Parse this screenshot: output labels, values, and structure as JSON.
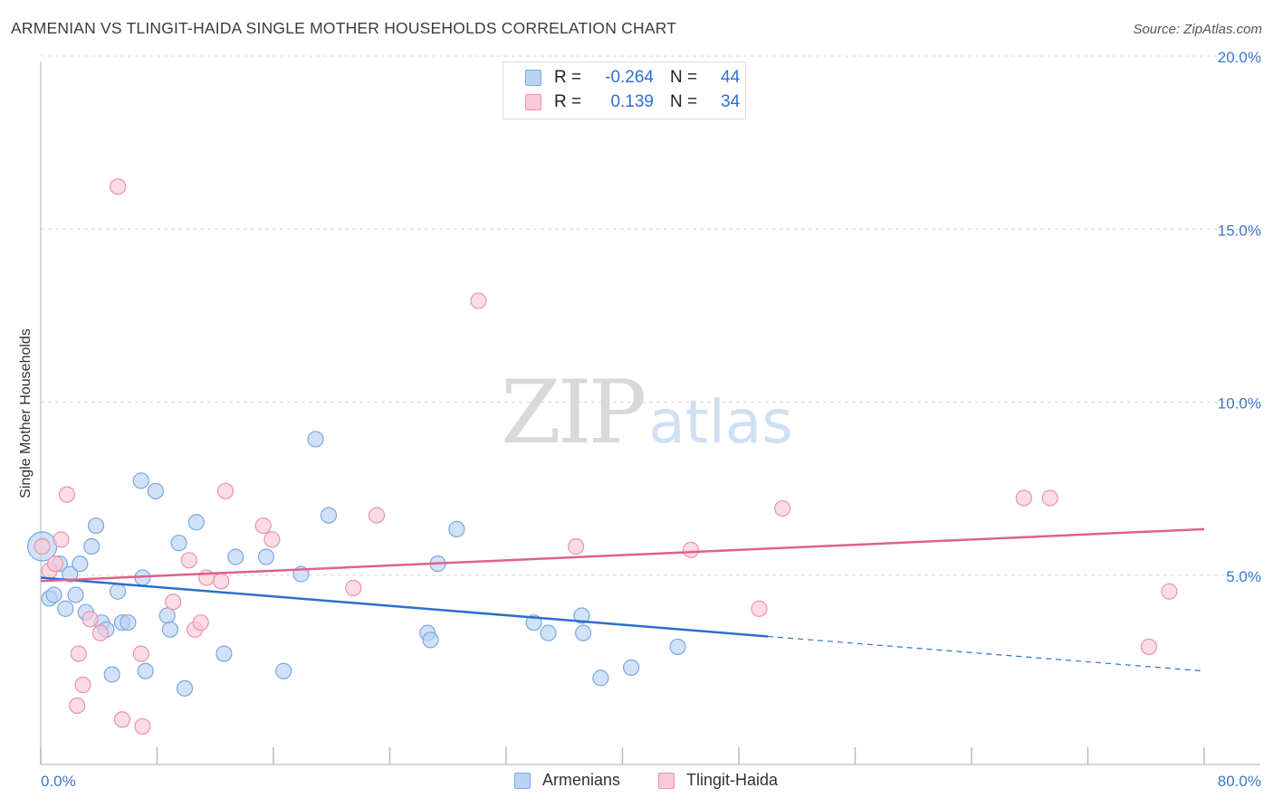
{
  "title": "ARMENIAN VS TLINGIT-HAIDA SINGLE MOTHER HOUSEHOLDS CORRELATION CHART",
  "source": "Source: ZipAtlas.com",
  "watermark": {
    "zip": "ZIP",
    "atlas": "atlas"
  },
  "legend": {
    "rows": [
      {
        "r_label": "R =",
        "r_value": "-0.264",
        "n_label": "N =",
        "n_value": "44"
      },
      {
        "r_label": "R =",
        "r_value": "0.139",
        "n_label": "N =",
        "n_value": "34"
      }
    ]
  },
  "bottom_legend": {
    "armenians": "Armenians",
    "tlingit": "Tlingit-Haida"
  },
  "colors": {
    "armenians_fill": "#b9d3f5",
    "armenians_stroke": "#7aa7e0",
    "armenians_line": "#2b6fcf",
    "tlingit_fill": "#f9c9d7",
    "tlingit_stroke": "#ea93ad",
    "tlingit_line": "#e0608c",
    "tick_label": "#3d78c9",
    "grid": "#d8d8d8"
  },
  "chart_data": {
    "type": "scatter",
    "title": "ARMENIAN VS TLINGIT-HAIDA SINGLE MOTHER HOUSEHOLDS CORRELATION CHART",
    "xlabel": "",
    "ylabel": "Single Mother Households",
    "xlim": [
      0,
      80
    ],
    "ylim": [
      0,
      20
    ],
    "x_tick_labels": [
      "0.0%",
      "80.0%"
    ],
    "y_ticks": [
      5,
      10,
      15,
      20
    ],
    "y_tick_labels": [
      "5.0%",
      "10.0%",
      "15.0%",
      "20.0%"
    ],
    "grid": "horizontal dashed",
    "legend_position": "top-center",
    "series": [
      {
        "name": "Armenians",
        "points": [
          [
            0.1,
            6.3
          ],
          [
            0.6,
            4.8
          ],
          [
            0.9,
            4.9
          ],
          [
            1.3,
            5.8
          ],
          [
            1.7,
            4.5
          ],
          [
            2.0,
            5.5
          ],
          [
            2.4,
            4.9
          ],
          [
            2.7,
            5.8
          ],
          [
            3.1,
            4.4
          ],
          [
            3.5,
            6.3
          ],
          [
            3.8,
            6.9
          ],
          [
            4.2,
            4.1
          ],
          [
            4.5,
            3.9
          ],
          [
            4.9,
            2.6
          ],
          [
            5.3,
            5.0
          ],
          [
            5.6,
            4.1
          ],
          [
            6.0,
            4.1
          ],
          [
            6.9,
            8.2
          ],
          [
            7.0,
            5.4
          ],
          [
            7.2,
            2.7
          ],
          [
            7.9,
            7.9
          ],
          [
            8.7,
            4.3
          ],
          [
            8.9,
            3.9
          ],
          [
            9.5,
            6.4
          ],
          [
            9.9,
            2.2
          ],
          [
            10.7,
            7.0
          ],
          [
            12.6,
            3.2
          ],
          [
            13.4,
            6.0
          ],
          [
            15.5,
            6.0
          ],
          [
            16.7,
            2.7
          ],
          [
            17.9,
            5.5
          ],
          [
            18.9,
            9.4
          ],
          [
            19.8,
            7.2
          ],
          [
            26.6,
            3.8
          ],
          [
            26.8,
            3.6
          ],
          [
            27.3,
            5.8
          ],
          [
            28.6,
            6.8
          ],
          [
            33.9,
            4.1
          ],
          [
            34.9,
            3.8
          ],
          [
            37.2,
            4.3
          ],
          [
            37.3,
            3.8
          ],
          [
            38.5,
            2.5
          ],
          [
            40.6,
            2.8
          ],
          [
            43.8,
            3.4
          ]
        ],
        "trend": {
          "x0": 0,
          "y0": 5.4,
          "x1": 50,
          "y1": 3.7,
          "dashed_to_x": 80,
          "dashed_to_y": 2.7
        }
      },
      {
        "name": "Tlingit-Haida",
        "points": [
          [
            0.1,
            6.3
          ],
          [
            0.6,
            5.6
          ],
          [
            1.0,
            5.8
          ],
          [
            1.4,
            6.5
          ],
          [
            1.8,
            7.8
          ],
          [
            2.5,
            1.7
          ],
          [
            2.6,
            3.2
          ],
          [
            2.9,
            2.3
          ],
          [
            3.4,
            4.2
          ],
          [
            4.1,
            3.8
          ],
          [
            5.3,
            16.7
          ],
          [
            5.6,
            1.3
          ],
          [
            6.9,
            3.2
          ],
          [
            7.0,
            1.1
          ],
          [
            9.1,
            4.7
          ],
          [
            10.2,
            5.9
          ],
          [
            10.6,
            3.9
          ],
          [
            11.0,
            4.1
          ],
          [
            11.4,
            5.4
          ],
          [
            12.4,
            5.3
          ],
          [
            12.7,
            7.9
          ],
          [
            15.3,
            6.9
          ],
          [
            15.9,
            6.5
          ],
          [
            21.5,
            5.1
          ],
          [
            23.1,
            7.2
          ],
          [
            30.1,
            13.4
          ],
          [
            36.8,
            6.3
          ],
          [
            44.7,
            6.2
          ],
          [
            49.4,
            4.5
          ],
          [
            51.0,
            7.4
          ],
          [
            67.6,
            7.7
          ],
          [
            69.4,
            7.7
          ],
          [
            76.2,
            3.4
          ],
          [
            77.6,
            5.0
          ]
        ],
        "trend": {
          "x0": 0,
          "y0": 5.3,
          "x1": 80,
          "y1": 6.8
        }
      }
    ]
  }
}
